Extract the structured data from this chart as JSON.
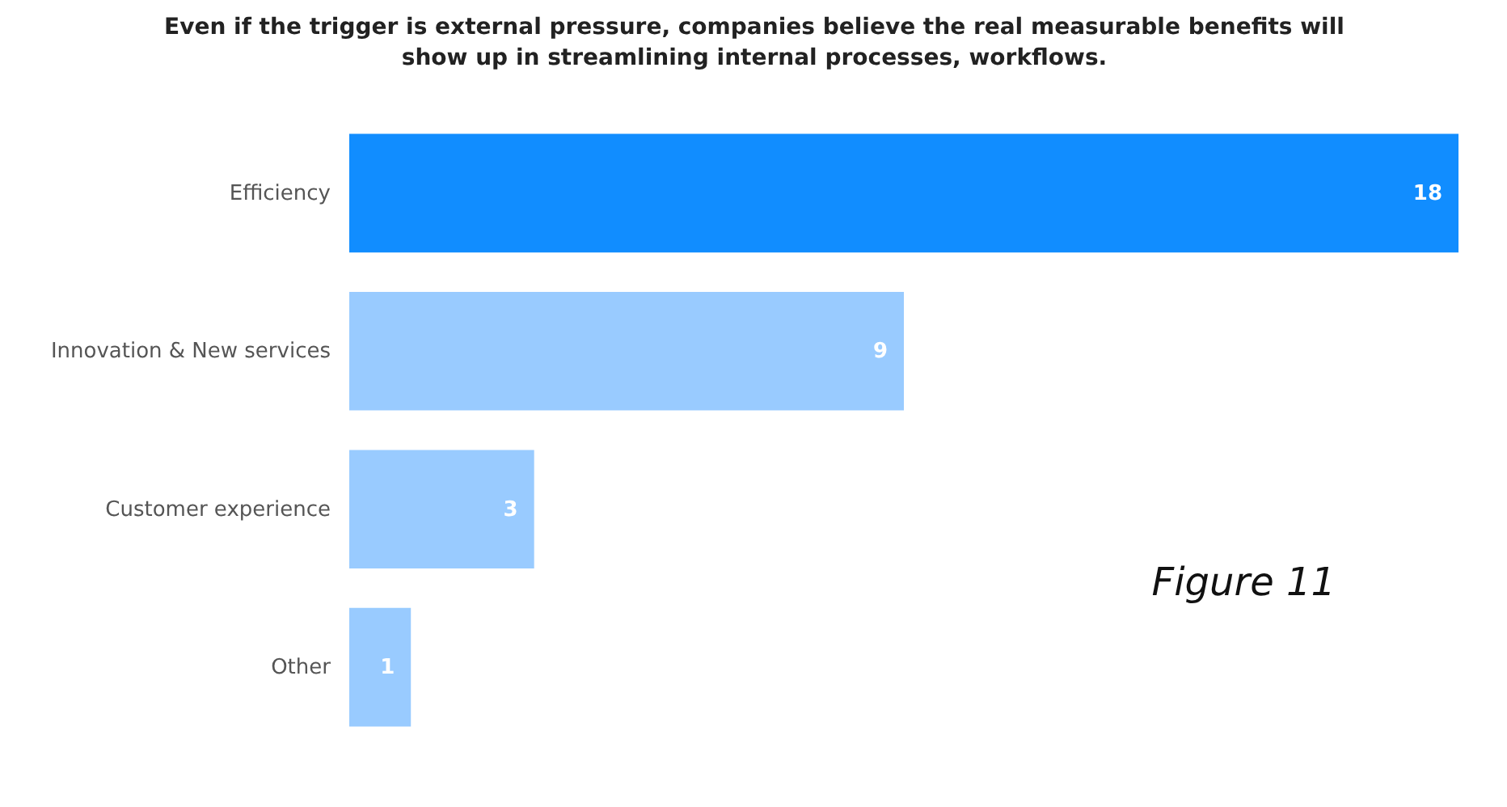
{
  "chart_data": {
    "type": "bar",
    "orientation": "horizontal",
    "title": "Even if the trigger is external pressure, companies believe the real measurable benefits will show up in streamlining internal processes, workflows.",
    "categories": [
      "Efficiency",
      "Innovation & New services",
      "Customer experience",
      "Other"
    ],
    "values": [
      18,
      9,
      3,
      1
    ],
    "colors": [
      "#118dff",
      "#99cbff",
      "#99cbff",
      "#99cbff"
    ],
    "data_labels": true,
    "grid": false,
    "annotations": [
      "Figure 11"
    ]
  }
}
